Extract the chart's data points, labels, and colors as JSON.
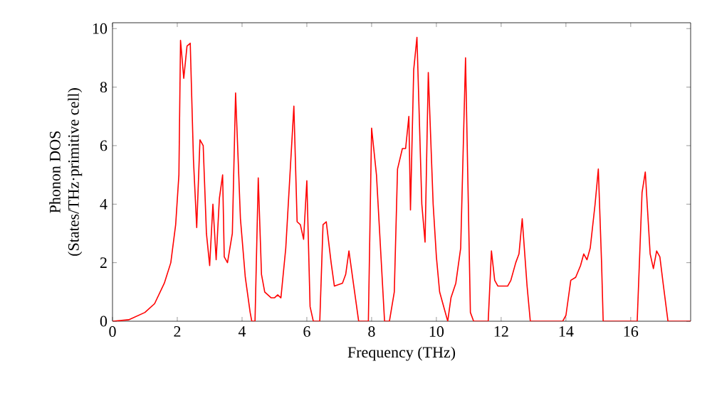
{
  "chart_data": {
    "type": "line",
    "xlabel": "Frequency (THz)",
    "ylabel": "Phonon DOS\n(States/THz·primitive cell)",
    "xlim": [
      0,
      17.85
    ],
    "ylim": [
      0,
      10.2
    ],
    "xticks": [
      0,
      2,
      4,
      6,
      8,
      10,
      12,
      14,
      16
    ],
    "yticks": [
      0,
      2,
      4,
      6,
      8,
      10
    ],
    "grid": false,
    "marker": "none",
    "line_style": "solid",
    "series": [
      {
        "color": "#ff0000",
        "x": [
          0,
          0.5,
          1,
          1.3,
          1.6,
          1.8,
          1.95,
          2.05,
          2.1,
          2.2,
          2.3,
          2.4,
          2.5,
          2.6,
          2.7,
          2.8,
          2.9,
          3.0,
          3.1,
          3.2,
          3.3,
          3.4,
          3.45,
          3.55,
          3.7,
          3.8,
          3.95,
          4.1,
          4.25,
          4.3,
          4.4,
          4.5,
          4.6,
          4.7,
          4.9,
          5.0,
          5.1,
          5.2,
          5.35,
          5.6,
          5.7,
          5.8,
          5.9,
          6.0,
          6.1,
          6.2,
          6.4,
          6.5,
          6.6,
          6.75,
          6.85,
          7.1,
          7.2,
          7.3,
          7.45,
          7.6,
          7.9,
          8.0,
          8.15,
          8.3,
          8.4,
          8.55,
          8.7,
          8.8,
          8.95,
          9.05,
          9.15,
          9.2,
          9.3,
          9.4,
          9.55,
          9.65,
          9.75,
          9.9,
          10.0,
          10.1,
          10.3,
          10.35,
          10.45,
          10.6,
          10.75,
          10.9,
          11.05,
          11.15,
          11.6,
          11.7,
          11.8,
          11.9,
          12.0,
          12.1,
          12.2,
          12.3,
          12.45,
          12.55,
          12.65,
          12.8,
          12.9,
          13.9,
          14.0,
          14.15,
          14.3,
          14.45,
          14.55,
          14.65,
          14.75,
          14.9,
          15.0,
          15.1,
          15.15,
          16.2,
          16.35,
          16.45,
          16.6,
          16.7,
          16.8,
          16.9,
          17.0,
          17.15,
          17.85
        ],
        "values": [
          0,
          0.05,
          0.3,
          0.6,
          1.3,
          2.0,
          3.3,
          5,
          9.6,
          8.3,
          9.4,
          9.5,
          5.5,
          3.2,
          6.2,
          6.0,
          3.0,
          1.9,
          4.0,
          2.1,
          4.2,
          5.0,
          2.2,
          2.0,
          3.0,
          7.8,
          3.5,
          1.5,
          0.3,
          0,
          0,
          4.9,
          1.6,
          1.0,
          0.8,
          0.8,
          0.9,
          0.8,
          2.5,
          7.35,
          3.4,
          3.3,
          2.8,
          4.8,
          0.5,
          0,
          0,
          3.3,
          3.4,
          2.0,
          1.2,
          1.3,
          1.6,
          2.4,
          1.2,
          0,
          0,
          6.6,
          5.0,
          2.0,
          0,
          0,
          1.0,
          5.2,
          5.9,
          5.9,
          7.0,
          3.8,
          8.6,
          9.7,
          4.0,
          2.7,
          8.5,
          4.0,
          2.2,
          1.0,
          0.2,
          0,
          0.8,
          1.3,
          2.5,
          9.0,
          0.3,
          0,
          0,
          2.4,
          1.4,
          1.2,
          1.2,
          1.2,
          1.2,
          1.4,
          2.0,
          2.3,
          3.5,
          1.2,
          0,
          0,
          0.2,
          1.4,
          1.5,
          1.9,
          2.3,
          2.1,
          2.5,
          4.0,
          5.2,
          2.0,
          0,
          0,
          4.4,
          5.1,
          2.3,
          1.8,
          2.4,
          2.2,
          1.3,
          0,
          0
        ]
      }
    ]
  }
}
